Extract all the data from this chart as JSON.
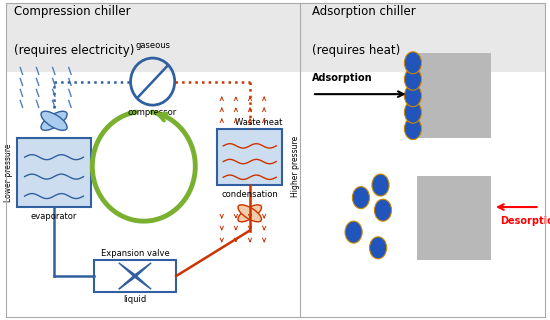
{
  "bg_color": "#e8e8e8",
  "white": "#ffffff",
  "blue": "#3060a0",
  "blue_light": "#5080c0",
  "blue_dot": "#2255bb",
  "blue_dot_edge": "#cc8800",
  "orange": "#cc3300",
  "green": "#7ab030",
  "gray_box": "#b8b8b8",
  "left_title_line1": "Compression chiller",
  "left_title_line2": "(requires electricity)",
  "right_title_line1": "Adsorption chiller",
  "right_title_line2": "(requires heat)",
  "label_gaseous": "gaseous",
  "label_compressor": "compressor",
  "label_evaporator": "evaporator",
  "label_lower_pressure": "Lower pressure",
  "label_higher_pressure": "Higher pressure",
  "label_condensation": "condensation",
  "label_waste_heat": "Waste heat",
  "label_expansion": "Expansion valve",
  "label_liquid": "liquid",
  "label_adsorption": "Adsorption",
  "label_desorption": "Desorption"
}
